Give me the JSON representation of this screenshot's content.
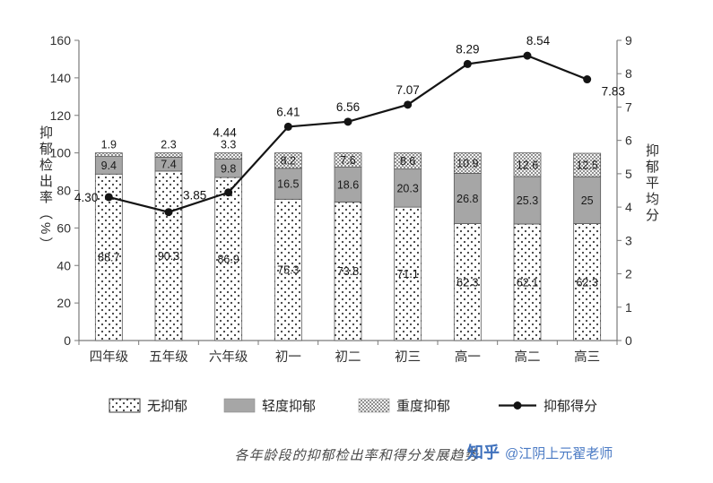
{
  "chart_data": {
    "type": "bar",
    "subtype": "stacked-bar-with-line",
    "title": "",
    "categories": [
      "四年级",
      "五年级",
      "六年级",
      "初一",
      "初二",
      "初三",
      "高一",
      "高二",
      "高三"
    ],
    "series": [
      {
        "name": "无抑郁",
        "kind": "bar",
        "pattern": "dot-sparse",
        "values": [
          88.7,
          90.3,
          86.9,
          75.3,
          73.8,
          71.1,
          62.3,
          62.1,
          62.3
        ]
      },
      {
        "name": "轻度抑郁",
        "kind": "bar",
        "pattern": "solid",
        "color": "#a6a6a6",
        "values": [
          9.4,
          7.4,
          9.8,
          16.5,
          18.6,
          20.3,
          26.8,
          25.3,
          25
        ]
      },
      {
        "name": "重度抑郁",
        "kind": "bar",
        "pattern": "dot-dense",
        "values": [
          1.9,
          2.3,
          3.3,
          8.2,
          7.6,
          8.6,
          10.9,
          12.6,
          12.5
        ]
      },
      {
        "name": "抑郁得分",
        "kind": "line",
        "color": "#141414",
        "values": [
          4.3,
          3.85,
          4.44,
          6.41,
          6.56,
          7.07,
          8.29,
          8.54,
          7.83
        ],
        "labels": [
          "4.30",
          "3.85",
          "4.44",
          "6.41",
          "6.56",
          "7.07",
          "8.29",
          "8.54",
          "7.83"
        ]
      }
    ],
    "left_axis": {
      "label": "抑郁检出率（%）",
      "min": 0,
      "max": 160,
      "step": 20,
      "ticks": [
        0,
        20,
        40,
        60,
        80,
        100,
        120,
        140,
        160
      ]
    },
    "right_axis": {
      "label": "抑郁平均分",
      "min": 0,
      "max": 9,
      "step": 1,
      "ticks": [
        0,
        1,
        2,
        3,
        4,
        5,
        6,
        7,
        8,
        9
      ]
    },
    "legend": {
      "position": "bottom",
      "items": [
        "无抑郁",
        "轻度抑郁",
        "重度抑郁",
        "抑郁得分"
      ]
    },
    "grid": false,
    "colors": {
      "bar_gray": "#a6a6a6",
      "line": "#141414",
      "axis": "#7a7a7a"
    }
  },
  "caption": "各年龄段的抑郁检出率和得分发展趋势",
  "watermark": {
    "brand": "知乎",
    "handle": "@江阴上元翟老师"
  }
}
